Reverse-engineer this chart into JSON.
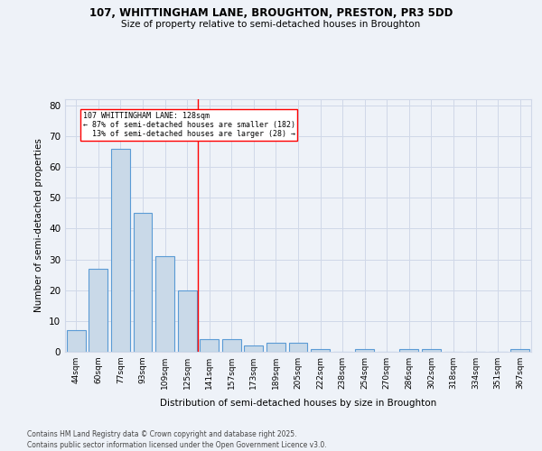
{
  "title_line1": "107, WHITTINGHAM LANE, BROUGHTON, PRESTON, PR3 5DD",
  "title_line2": "Size of property relative to semi-detached houses in Broughton",
  "xlabel": "Distribution of semi-detached houses by size in Broughton",
  "ylabel": "Number of semi-detached properties",
  "categories": [
    "44sqm",
    "60sqm",
    "77sqm",
    "93sqm",
    "109sqm",
    "125sqm",
    "141sqm",
    "157sqm",
    "173sqm",
    "189sqm",
    "205sqm",
    "222sqm",
    "238sqm",
    "254sqm",
    "270sqm",
    "286sqm",
    "302sqm",
    "318sqm",
    "334sqm",
    "351sqm",
    "367sqm"
  ],
  "values": [
    7,
    27,
    66,
    45,
    31,
    20,
    4,
    4,
    2,
    3,
    3,
    1,
    0,
    1,
    0,
    1,
    1,
    0,
    0,
    0,
    1
  ],
  "bar_color": "#c9d9e8",
  "bar_edge_color": "#5b9bd5",
  "vline_x": 5.5,
  "vline_color": "red",
  "annotation_text": "107 WHITTINGHAM LANE: 128sqm\n← 87% of semi-detached houses are smaller (182)\n  13% of semi-detached houses are larger (28) →",
  "annotation_box_color": "white",
  "annotation_box_edge": "red",
  "ylim": [
    0,
    82
  ],
  "yticks": [
    0,
    10,
    20,
    30,
    40,
    50,
    60,
    70,
    80
  ],
  "grid_color": "#d0d8e8",
  "background_color": "#eef2f8",
  "footer_line1": "Contains HM Land Registry data © Crown copyright and database right 2025.",
  "footer_line2": "Contains public sector information licensed under the Open Government Licence v3.0."
}
